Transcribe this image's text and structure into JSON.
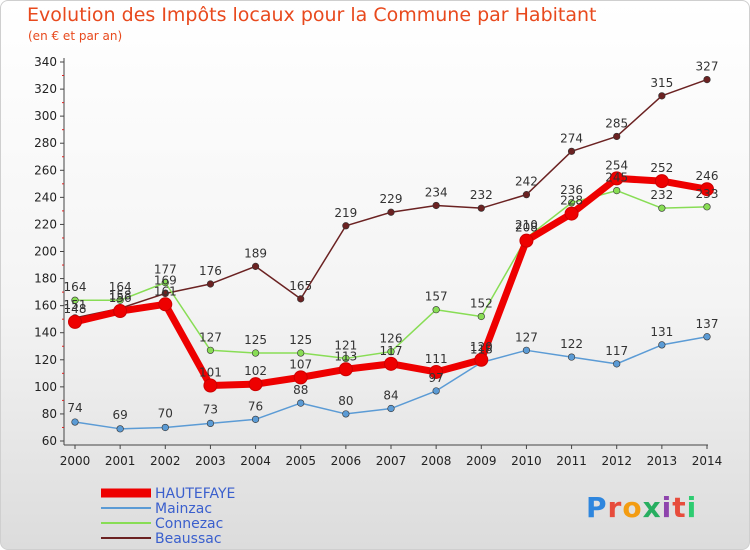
{
  "header": {
    "title": "Evolution des Impôts locaux pour la Commune par Habitant",
    "subtitle": "(en € et par an)"
  },
  "logo": {
    "text": "Proxiti",
    "colors": [
      "#2e86de",
      "#e74c3c",
      "#f39c12",
      "#27ae60",
      "#8e44ad",
      "#e74c3c",
      "#2ecc71"
    ]
  },
  "chart_data": {
    "type": "line",
    "x": [
      2000,
      2001,
      2002,
      2003,
      2004,
      2005,
      2006,
      2007,
      2008,
      2009,
      2010,
      2011,
      2012,
      2013,
      2014
    ],
    "ylim": [
      60,
      340
    ],
    "yticks": [
      60,
      80,
      100,
      120,
      140,
      160,
      180,
      200,
      220,
      240,
      260,
      280,
      300,
      320,
      340
    ],
    "grid": false,
    "legend_position": "bottom-left",
    "series": [
      {
        "name": "HAUTEFAYE",
        "color": "#ee0000",
        "values": [
          148,
          156,
          161,
          101,
          102,
          107,
          113,
          117,
          111,
          120,
          208,
          228,
          254,
          252,
          246
        ]
      },
      {
        "name": "Mainzac",
        "color": "#5b9bd5",
        "values": [
          74,
          69,
          70,
          73,
          76,
          88,
          80,
          84,
          97,
          118,
          127,
          122,
          117,
          131,
          137
        ]
      },
      {
        "name": "Connezac",
        "color": "#88dd55",
        "values": [
          164,
          164,
          177,
          127,
          125,
          125,
          121,
          126,
          157,
          152,
          210,
          236,
          245,
          232,
          233
        ]
      },
      {
        "name": "Beaussac",
        "color": "#6b2222",
        "values": [
          151,
          158,
          169,
          176,
          189,
          165,
          219,
          229,
          234,
          232,
          242,
          274,
          285,
          315,
          327
        ]
      }
    ]
  }
}
